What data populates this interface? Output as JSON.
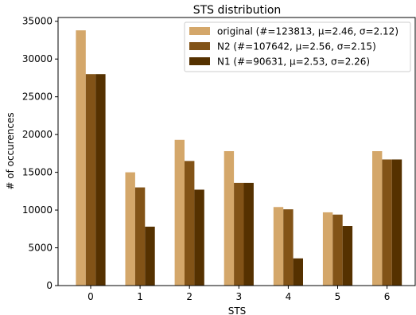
{
  "chart_data": {
    "type": "bar",
    "title": "STS distribution",
    "xlabel": "STS",
    "ylabel": "# of occurences",
    "categories": [
      "0",
      "1",
      "2",
      "3",
      "4",
      "5",
      "6"
    ],
    "ylim": [
      0,
      35500
    ],
    "yticks": [
      0,
      5000,
      10000,
      15000,
      20000,
      25000,
      30000,
      35000
    ],
    "yticklabels": [
      "0",
      "5000",
      "10000",
      "15000",
      "20000",
      "25000",
      "30000",
      "35000"
    ],
    "grid": false,
    "legend_position": "top-right",
    "series": [
      {
        "name": "original (#=123813, μ=2.46, σ=2.12)",
        "color": "#D4A76A",
        "values": [
          33800,
          15000,
          19300,
          17800,
          10400,
          9700,
          17800
        ]
      },
      {
        "name": "N2 (#=107642, μ=2.56, σ=2.15)",
        "color": "#825317",
        "values": [
          28000,
          13000,
          16500,
          13600,
          10100,
          9400,
          16700
        ]
      },
      {
        "name": "N1 (#=90631, μ=2.53, σ=2.26)",
        "color": "#553100",
        "values": [
          28000,
          7800,
          12700,
          13600,
          3600,
          7900,
          16700
        ]
      }
    ]
  }
}
